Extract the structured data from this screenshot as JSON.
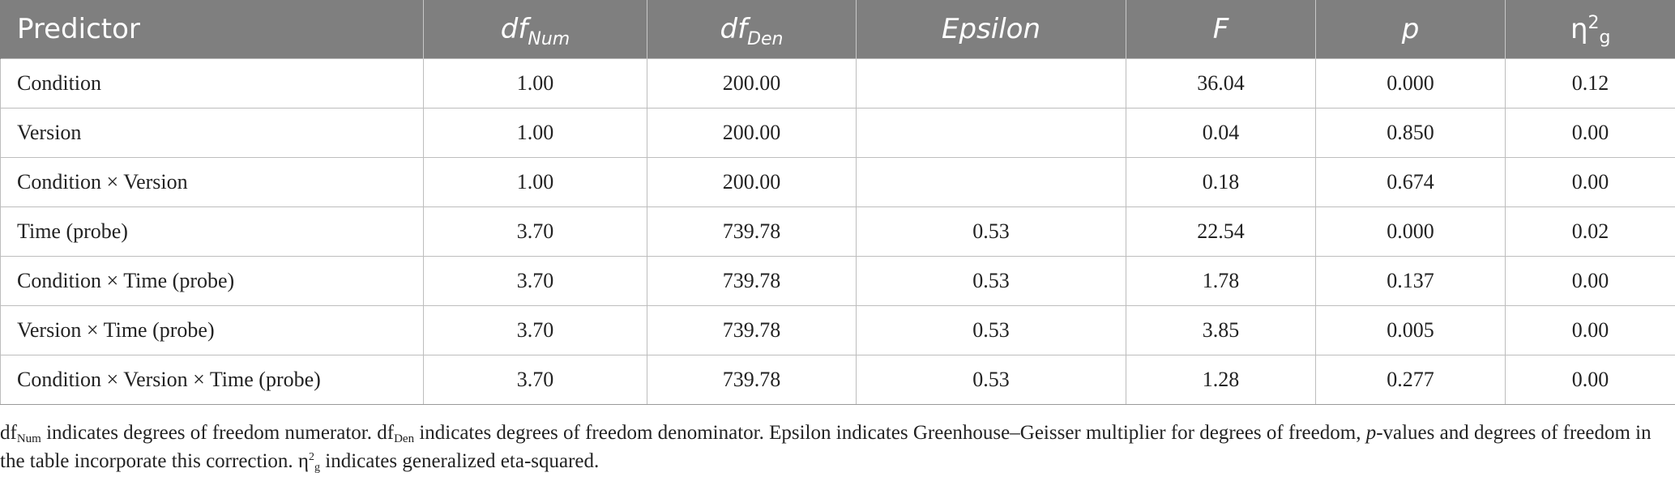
{
  "table": {
    "headers": {
      "predictor": "Predictor",
      "df_num_base": "df",
      "df_num_sub": "Num",
      "df_den_base": "df",
      "df_den_sub": "Den",
      "epsilon": "Epsilon",
      "f": "F",
      "p": "p",
      "eta_base": "η",
      "eta_sup": "2",
      "eta_sub": "g"
    },
    "rows": [
      {
        "predictor": "Condition",
        "df_num": "1.00",
        "df_den": "200.00",
        "epsilon": "",
        "f": "36.04",
        "p": "0.000",
        "eta": "0.12"
      },
      {
        "predictor": "Version",
        "df_num": "1.00",
        "df_den": "200.00",
        "epsilon": "",
        "f": "0.04",
        "p": "0.850",
        "eta": "0.00"
      },
      {
        "predictor": "Condition × Version",
        "df_num": "1.00",
        "df_den": "200.00",
        "epsilon": "",
        "f": "0.18",
        "p": "0.674",
        "eta": "0.00"
      },
      {
        "predictor": "Time (probe)",
        "df_num": "3.70",
        "df_den": "739.78",
        "epsilon": "0.53",
        "f": "22.54",
        "p": "0.000",
        "eta": "0.02"
      },
      {
        "predictor": "Condition × Time (probe)",
        "df_num": "3.70",
        "df_den": "739.78",
        "epsilon": "0.53",
        "f": "1.78",
        "p": "0.137",
        "eta": "0.00"
      },
      {
        "predictor": "Version × Time (probe)",
        "df_num": "3.70",
        "df_den": "739.78",
        "epsilon": "0.53",
        "f": "3.85",
        "p": "0.005",
        "eta": "0.00"
      },
      {
        "predictor": "Condition × Version × Time (probe)",
        "df_num": "3.70",
        "df_den": "739.78",
        "epsilon": "0.53",
        "f": "1.28",
        "p": "0.277",
        "eta": "0.00"
      }
    ]
  },
  "footnote": {
    "df_base_1": "df",
    "df_sub_1": "Num",
    "text_1": " indicates degrees of freedom numerator. ",
    "df_base_2": "df",
    "df_sub_2": "Den",
    "text_2": " indicates degrees of freedom denominator. Epsilon indicates Greenhouse–Geisser multiplier for degrees of freedom, ",
    "p_italic": "p",
    "text_3": "-values and degrees of freedom in the table incorporate this correction. ",
    "eta_base": "η",
    "eta_sup": "2",
    "eta_sub": "g",
    "text_4": " indicates generalized eta-squared."
  }
}
